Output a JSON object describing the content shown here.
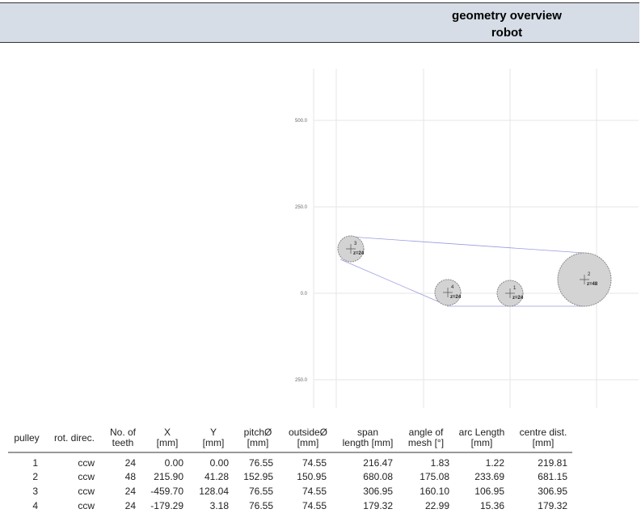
{
  "header": {
    "title": "geometry overview",
    "subtitle": "robot"
  },
  "diagram": {
    "y_axis_labels": [
      "500.0",
      "250.0",
      "0.0",
      "250.0"
    ],
    "pulleys": [
      {
        "number": "1",
        "teeth": "z=24"
      },
      {
        "number": "2",
        "teeth": "z=48"
      },
      {
        "number": "3",
        "teeth": "z=24"
      },
      {
        "number": "4",
        "teeth": "z=24"
      }
    ]
  },
  "table": {
    "columns": [
      [
        "pulley"
      ],
      [
        "rot. direc."
      ],
      [
        "No. of",
        "teeth"
      ],
      [
        "X",
        "[mm]"
      ],
      [
        "Y",
        "[mm]"
      ],
      [
        "pitchØ",
        "[mm]"
      ],
      [
        "outsideØ",
        "[mm]"
      ],
      [
        "span",
        "length [mm]"
      ],
      [
        "angle of",
        "mesh [°]"
      ],
      [
        "arc Length",
        "[mm]"
      ],
      [
        "centre dist.",
        "[mm]"
      ]
    ],
    "rows": [
      [
        "1",
        "ccw",
        "24",
        "0.00",
        "0.00",
        "76.55",
        "74.55",
        "216.47",
        "1.83",
        "1.22",
        "219.81"
      ],
      [
        "2",
        "ccw",
        "48",
        "215.90",
        "41.28",
        "152.95",
        "150.95",
        "680.08",
        "175.08",
        "233.69",
        "681.15"
      ],
      [
        "3",
        "ccw",
        "24",
        "-459.70",
        "128.04",
        "76.55",
        "74.55",
        "306.95",
        "160.10",
        "106.95",
        "306.95"
      ],
      [
        "4",
        "ccw",
        "24",
        "-179.29",
        "3.18",
        "76.55",
        "74.55",
        "179.32",
        "22.99",
        "15.36",
        "179.32"
      ]
    ]
  }
}
